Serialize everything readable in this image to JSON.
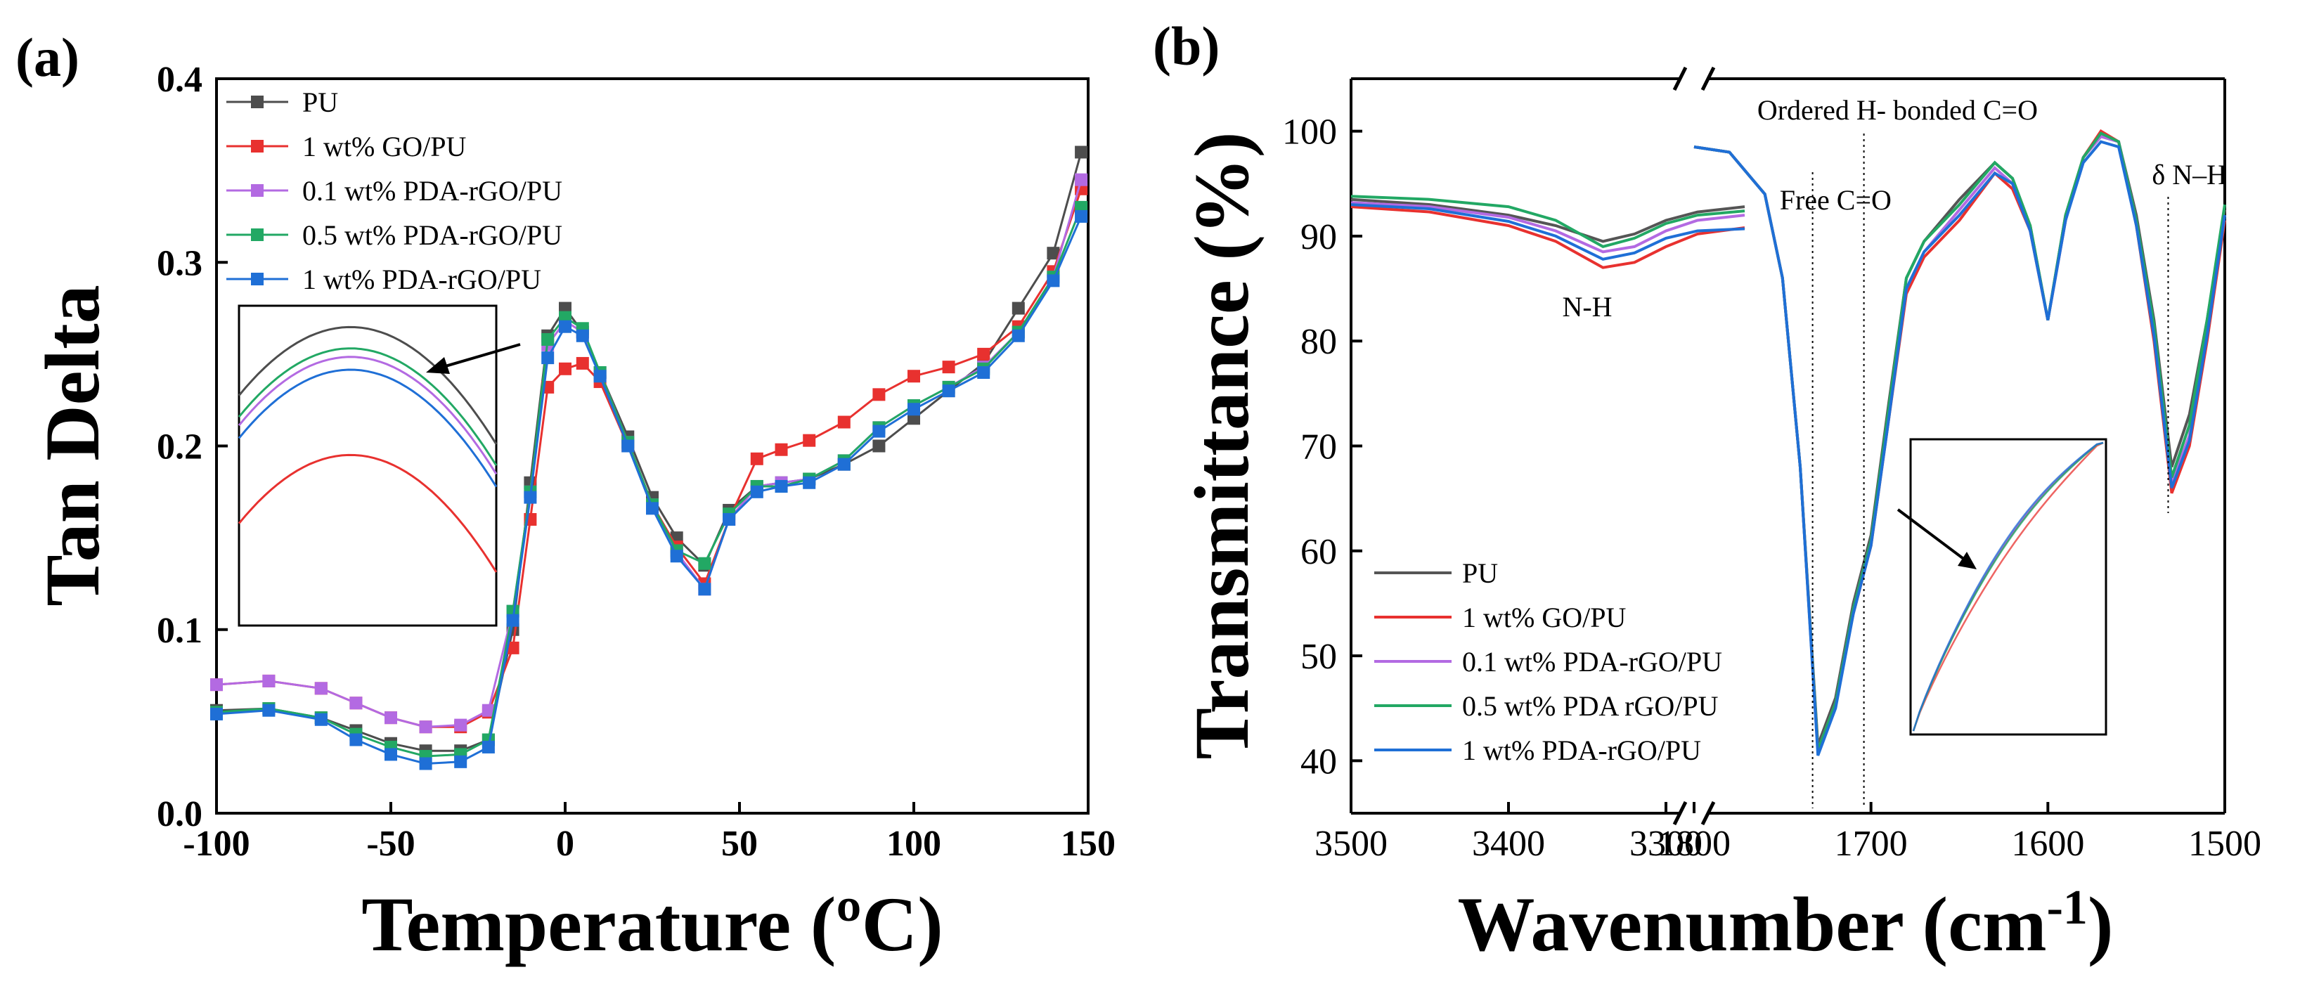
{
  "panel_a_label": "(a)",
  "panel_b_label": "(b)",
  "chart_data": [
    {
      "type": "line",
      "title": "",
      "xlabel": "Temperature (ºC)",
      "ylabel": "Tan Delta",
      "xlim": [
        -100,
        150
      ],
      "ylim": [
        0.0,
        0.4
      ],
      "xticks": [
        "-100",
        "-50",
        "0",
        "50",
        "100",
        "150"
      ],
      "yticks": [
        "0.0",
        "0.1",
        "0.2",
        "0.3",
        "0.4"
      ],
      "legend_position": "top-left",
      "x": [
        -100,
        -85,
        -70,
        -60,
        -50,
        -40,
        -30,
        -22,
        -15,
        -10,
        -5,
        0,
        5,
        10,
        18,
        25,
        32,
        40,
        47,
        55,
        62,
        70,
        80,
        90,
        100,
        110,
        120,
        130,
        140,
        148
      ],
      "series": [
        {
          "name": "PU",
          "color": "#4d4d4d",
          "values": [
            0.056,
            0.057,
            0.052,
            0.045,
            0.038,
            0.034,
            0.034,
            0.04,
            0.1,
            0.18,
            0.26,
            0.275,
            0.262,
            0.24,
            0.205,
            0.172,
            0.15,
            0.135,
            0.165,
            0.178,
            0.18,
            0.182,
            0.19,
            0.2,
            0.215,
            0.23,
            0.245,
            0.275,
            0.305,
            0.36
          ]
        },
        {
          "name": "1 wt% GO/PU",
          "color": "#e8312f",
          "values": [
            0.07,
            0.072,
            0.068,
            0.06,
            0.052,
            0.047,
            0.047,
            0.055,
            0.09,
            0.16,
            0.232,
            0.242,
            0.245,
            0.235,
            0.2,
            0.168,
            0.145,
            0.125,
            0.16,
            0.193,
            0.198,
            0.203,
            0.213,
            0.228,
            0.238,
            0.243,
            0.25,
            0.265,
            0.295,
            0.34
          ]
        },
        {
          "name": "0.1 wt% PDA-rGO/PU",
          "color": "#b36ae2",
          "values": [
            0.07,
            0.072,
            0.068,
            0.06,
            0.052,
            0.047,
            0.048,
            0.056,
            0.11,
            0.175,
            0.255,
            0.268,
            0.262,
            0.24,
            0.202,
            0.168,
            0.142,
            0.122,
            0.16,
            0.178,
            0.18,
            0.182,
            0.192,
            0.21,
            0.222,
            0.232,
            0.243,
            0.262,
            0.292,
            0.345
          ]
        },
        {
          "name": "0.5 wt% PDA-rGO/PU",
          "color": "#22a864",
          "values": [
            0.055,
            0.057,
            0.052,
            0.043,
            0.036,
            0.031,
            0.032,
            0.04,
            0.11,
            0.175,
            0.258,
            0.27,
            0.264,
            0.24,
            0.202,
            0.168,
            0.143,
            0.136,
            0.163,
            0.178,
            0.178,
            0.182,
            0.192,
            0.21,
            0.222,
            0.232,
            0.242,
            0.262,
            0.292,
            0.33
          ]
        },
        {
          "name": "1 wt% PDA-rGO/PU",
          "color": "#1f6fd6",
          "values": [
            0.054,
            0.056,
            0.051,
            0.04,
            0.032,
            0.027,
            0.028,
            0.036,
            0.105,
            0.172,
            0.248,
            0.265,
            0.26,
            0.238,
            0.2,
            0.166,
            0.14,
            0.122,
            0.16,
            0.175,
            0.178,
            0.18,
            0.19,
            0.208,
            0.22,
            0.23,
            0.24,
            0.26,
            0.29,
            0.325
          ]
        }
      ]
    },
    {
      "type": "line",
      "title": "",
      "xlabel": "Wavenumber (cm",
      "xlabel_sup": "-1",
      "xlabel_close": ")",
      "ylabel": "Transmittance (%)",
      "ylim": [
        35,
        105
      ],
      "xlim_left": [
        3500,
        3300
      ],
      "xlim_right": [
        1800,
        1500
      ],
      "xticks": [
        "3500",
        "3400",
        "3300",
        "1800",
        "1700",
        "1600",
        "1500"
      ],
      "yticks": [
        "40",
        "50",
        "60",
        "70",
        "80",
        "90",
        "100"
      ],
      "legend_position": "bottom-left",
      "annotations": {
        "ordered": "Ordered H- bonded C=O",
        "free": "Free C=O",
        "dnh": "δ N–H",
        "nh": "N-H"
      },
      "x_left": [
        3500,
        3450,
        3400,
        3370,
        3340,
        3320,
        3300,
        3280,
        3250
      ],
      "x_right": [
        1800,
        1780,
        1760,
        1750,
        1740,
        1730,
        1720,
        1710,
        1700,
        1690,
        1680,
        1670,
        1650,
        1630,
        1620,
        1610,
        1600,
        1590,
        1580,
        1570,
        1560,
        1550,
        1540,
        1530,
        1520,
        1510,
        1500
      ],
      "series": [
        {
          "name": "PU",
          "color": "#555555",
          "left_values": [
            93.5,
            93.0,
            92.0,
            91.0,
            89.5,
            90.2,
            91.5,
            92.3,
            92.8
          ],
          "right_values": [
            98.5,
            98.0,
            94.0,
            86.0,
            68.0,
            41.5,
            46.0,
            55.0,
            61.5,
            74.0,
            86.0,
            89.5,
            93.5,
            97.0,
            95.5,
            91.0,
            82.0,
            92.0,
            97.5,
            99.5,
            99.0,
            92.0,
            82.0,
            68.0,
            73.0,
            82.0,
            92.5
          ]
        },
        {
          "name": "1 wt% GO/PU",
          "color": "#e8312f",
          "left_values": [
            92.8,
            92.3,
            91.0,
            89.5,
            87.0,
            87.5,
            89.0,
            90.2,
            90.8
          ],
          "right_values": [
            98.5,
            98.0,
            94.0,
            86.0,
            68.0,
            41.0,
            45.5,
            54.0,
            60.5,
            72.5,
            84.5,
            88.0,
            91.5,
            96.0,
            94.5,
            90.5,
            82.0,
            91.5,
            97.5,
            100.0,
            99.0,
            91.0,
            80.0,
            65.5,
            70.0,
            80.0,
            91.5
          ]
        },
        {
          "name": "0.1 wt% PDA-rGO/PU",
          "color": "#b36ae2",
          "left_values": [
            93.2,
            92.8,
            91.8,
            90.5,
            88.5,
            89.0,
            90.5,
            91.5,
            92.0
          ],
          "right_values": [
            98.5,
            98.0,
            94.0,
            86.0,
            68.0,
            41.0,
            45.5,
            54.5,
            61.0,
            73.0,
            85.0,
            88.5,
            92.5,
            96.5,
            95.0,
            90.5,
            82.0,
            91.5,
            97.5,
            99.5,
            99.0,
            91.5,
            81.0,
            66.5,
            71.0,
            81.0,
            92.0
          ]
        },
        {
          "name": "0.5 wt% PDA rGO/PU",
          "color": "#22a864",
          "left_values": [
            93.8,
            93.5,
            92.8,
            91.5,
            89.0,
            89.8,
            91.2,
            92.0,
            92.4
          ],
          "right_values": [
            98.5,
            98.0,
            94.0,
            86.0,
            68.0,
            41.0,
            45.5,
            54.5,
            61.0,
            73.5,
            86.0,
            89.5,
            93.0,
            97.0,
            95.5,
            91.0,
            82.0,
            92.0,
            97.5,
            99.8,
            99.0,
            91.5,
            81.5,
            67.0,
            72.0,
            82.0,
            93.0
          ]
        },
        {
          "name": "1 wt% PDA-rGO/PU",
          "color": "#1f6fd6",
          "left_values": [
            93.0,
            92.6,
            91.4,
            90.0,
            87.8,
            88.4,
            89.8,
            90.5,
            90.7
          ],
          "right_values": [
            98.5,
            98.0,
            94.0,
            86.0,
            68.0,
            40.5,
            45.0,
            54.0,
            60.5,
            72.5,
            85.0,
            88.5,
            92.0,
            96.0,
            95.0,
            90.5,
            82.0,
            91.5,
            97.0,
            99.0,
            98.5,
            91.0,
            80.5,
            66.0,
            70.5,
            80.5,
            92.0
          ]
        }
      ]
    }
  ]
}
